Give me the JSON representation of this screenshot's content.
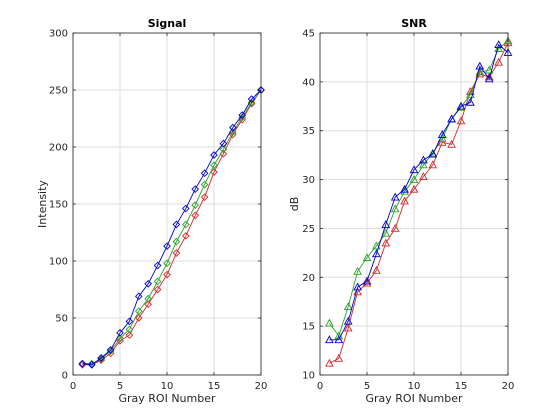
{
  "chart_data": [
    {
      "type": "line",
      "title": "Signal",
      "xlabel": "Gray ROI Number",
      "ylabel": "Intensity",
      "xlim": [
        0,
        20
      ],
      "ylim": [
        0,
        300
      ],
      "xticks": [
        0,
        5,
        10,
        15,
        20
      ],
      "yticks": [
        0,
        50,
        100,
        150,
        200,
        250,
        300
      ],
      "grid": true,
      "marker": "diamond",
      "x": [
        1,
        2,
        3,
        4,
        5,
        6,
        7,
        8,
        9,
        10,
        11,
        12,
        13,
        14,
        15,
        16,
        17,
        18,
        19,
        20
      ],
      "series": [
        {
          "color": "#d62728",
          "values": [
            9,
            9,
            13,
            19,
            30,
            35,
            50,
            62,
            75,
            88,
            107,
            122,
            140,
            156,
            178,
            194,
            211,
            224,
            238,
            250
          ]
        },
        {
          "color": "#2ca02c",
          "values": [
            10,
            10,
            14,
            21,
            32,
            40,
            56,
            67,
            82,
            98,
            117,
            132,
            149,
            167,
            184,
            198,
            213,
            226,
            239,
            250
          ]
        },
        {
          "color": "#0000c8",
          "values": [
            10,
            9,
            15,
            22,
            37,
            47,
            69,
            80,
            96,
            113,
            132,
            146,
            163,
            177,
            193,
            203,
            217,
            228,
            242,
            250
          ]
        }
      ]
    },
    {
      "type": "line",
      "title": "SNR",
      "xlabel": "Gray ROI Number",
      "ylabel": "dB",
      "xlim": [
        0,
        20
      ],
      "ylim": [
        10,
        45
      ],
      "xticks": [
        0,
        5,
        10,
        15,
        20
      ],
      "yticks": [
        10,
        15,
        20,
        25,
        30,
        35,
        40,
        45
      ],
      "grid": true,
      "marker": "triangle",
      "x": [
        1,
        2,
        3,
        4,
        5,
        6,
        7,
        8,
        9,
        10,
        11,
        12,
        13,
        14,
        15,
        16,
        17,
        18,
        19,
        20
      ],
      "series": [
        {
          "color": "#d62728",
          "values": [
            11.2,
            11.7,
            14.8,
            18.5,
            19.4,
            20.7,
            23.5,
            25.0,
            27.8,
            29.0,
            30.3,
            31.5,
            33.8,
            33.6,
            36.0,
            39.0,
            40.8,
            40.5,
            42.0,
            44.0
          ]
        },
        {
          "color": "#2ca02c",
          "values": [
            15.3,
            14.0,
            17.0,
            20.6,
            22.0,
            23.2,
            24.5,
            27.0,
            28.8,
            30.0,
            31.5,
            32.7,
            34.2,
            36.2,
            37.4,
            38.7,
            41.0,
            41.2,
            43.4,
            44.2
          ]
        },
        {
          "color": "#0000c8",
          "values": [
            13.6,
            13.6,
            15.5,
            19.0,
            19.6,
            22.4,
            25.4,
            28.2,
            29.0,
            31.0,
            32.0,
            32.6,
            34.6,
            36.2,
            37.5,
            37.9,
            41.6,
            40.3,
            43.8,
            43.0
          ]
        }
      ]
    }
  ]
}
